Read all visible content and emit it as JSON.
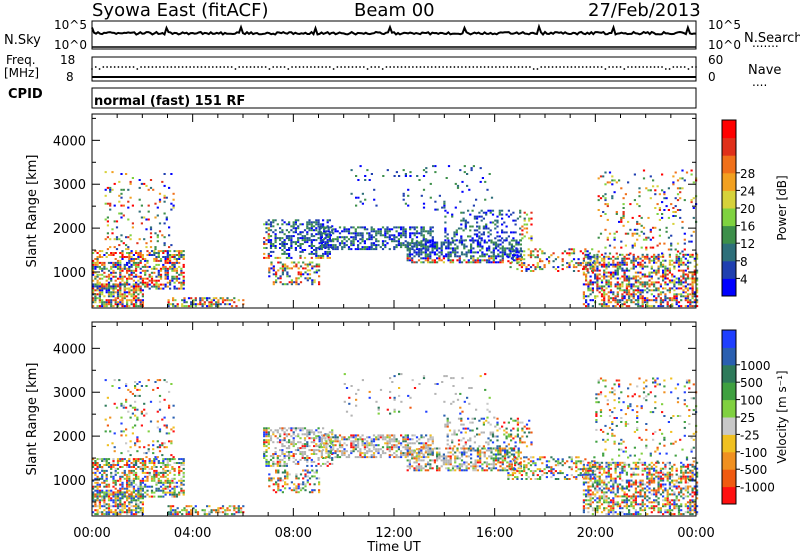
{
  "header": {
    "title": "Syowa East (fitACF)",
    "beam": "Beam 00",
    "date": "27/Feb/2013"
  },
  "strips": {
    "nsky_label": "N.Sky",
    "nsky_ticks": [
      "10^5",
      "10^0"
    ],
    "nsearch_label": "N.Search",
    "nsearch_ticks": [
      "10^5",
      "10^0"
    ],
    "freq_label_top": "Freq.",
    "freq_label_unit": "[MHz]",
    "freq_ticks": [
      "18",
      "8"
    ],
    "nave_label": "Nave",
    "nave_ticks": [
      "60",
      "0"
    ],
    "cpid_label": "CPID",
    "cpid_value": "normal (fast) 151 RF"
  },
  "chart_data": [
    {
      "type": "heatmap",
      "name": "power",
      "ylabel": "Slant Range [km]",
      "xlabel": "Time UT",
      "x_ticks": [
        "00:00",
        "04:00",
        "08:00",
        "12:00",
        "16:00",
        "20:00",
        "00:00"
      ],
      "x_range_hours": [
        0,
        24
      ],
      "y_ticks": [
        1000,
        2000,
        3000,
        4000
      ],
      "y_range": [
        180,
        4600
      ],
      "colorbar_label": "Power [dB]",
      "colorbar_ticks": [
        "4",
        "8",
        "12",
        "16",
        "20",
        "24",
        "28"
      ],
      "colorbar_colors": [
        "#0000ff",
        "#1f3fb0",
        "#2e6f7a",
        "#3d8f4a",
        "#7fd240",
        "#d6d23a",
        "#f2a020",
        "#f0701a",
        "#e0301a",
        "#ff0000"
      ]
    },
    {
      "type": "heatmap",
      "name": "velocity",
      "ylabel": "Slant Range [km]",
      "xlabel": "Time UT",
      "x_ticks": [
        "00:00",
        "04:00",
        "08:00",
        "12:00",
        "16:00",
        "20:00",
        "00:00"
      ],
      "x_range_hours": [
        0,
        24
      ],
      "y_ticks": [
        1000,
        2000,
        3000,
        4000
      ],
      "y_range": [
        180,
        4600
      ],
      "colorbar_label": "Velocity [m s⁻¹]",
      "colorbar_ticks": [
        "1000",
        "500",
        "100",
        "25",
        "-25",
        "-100",
        "-500",
        "-1000"
      ],
      "colorbar_colors": [
        "#1f3fff",
        "#2a5fb0",
        "#2e7a5a",
        "#3fa040",
        "#80d040",
        "#c8c8c8",
        "#f0c020",
        "#f09020",
        "#f05a10",
        "#ff1010"
      ]
    }
  ],
  "colors": {
    "ground_scatter": "#b4b4b4"
  }
}
